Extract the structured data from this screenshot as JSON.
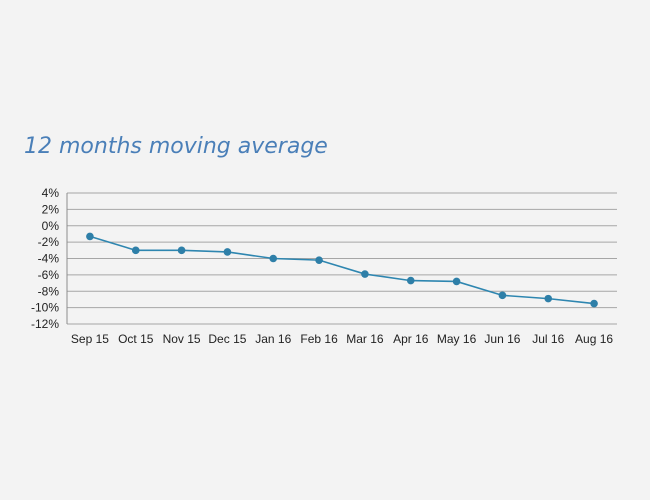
{
  "chart_data": {
    "type": "line",
    "title": "12 months moving average",
    "categories": [
      "Sep 15",
      "Oct 15",
      "Nov 15",
      "Dec 15",
      "Jan 16",
      "Feb 16",
      "Mar 16",
      "Apr 16",
      "May 16",
      "Jun 16",
      "Jul 16",
      "Aug 16"
    ],
    "series": [
      {
        "values": [
          -1.3,
          -3.0,
          -3.0,
          -3.2,
          -4.0,
          -4.2,
          -5.9,
          -6.7,
          -6.8,
          -8.5,
          -8.9,
          -9.5
        ]
      }
    ],
    "ylim": [
      -12,
      4
    ],
    "yticks": [
      4,
      2,
      0,
      -2,
      -4,
      -6,
      -8,
      -10,
      -12
    ],
    "ytick_labels": [
      "4%",
      "2%",
      "0%",
      "-2%",
      "-4%",
      "-6%",
      "-8%",
      "-10%",
      "-12%"
    ],
    "xlabel": "",
    "ylabel": "",
    "grid": true,
    "legend": "none",
    "colors": {
      "line": "#2e86b0",
      "marker": "#2e7fa8",
      "title": "#4a7fb8"
    }
  }
}
